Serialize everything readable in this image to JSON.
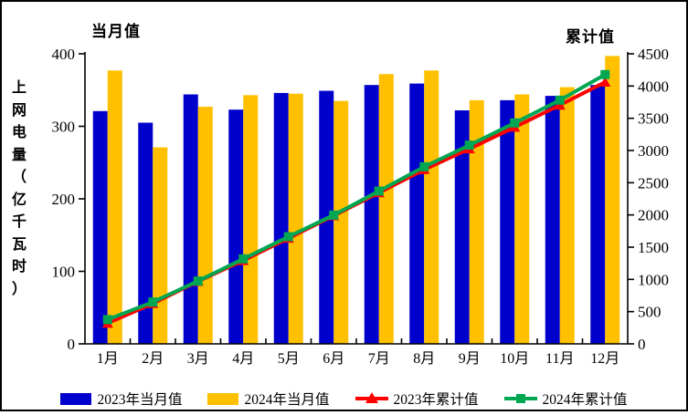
{
  "titles": {
    "left_axis_vertical": "上网电量（亿千瓦时）",
    "primary_axis_top": "当月值",
    "secondary_axis_top": "累计值"
  },
  "colors": {
    "bar_2023": "#0000CC",
    "bar_2024": "#FFC000",
    "line_2023": "#FF0000",
    "line_2024": "#00A651",
    "axis": "#000000",
    "text": "#000000",
    "frame_border": "#000000"
  },
  "chart_data": {
    "type": "bar",
    "subtype": "combo-bar-line-dual-axis",
    "title": "",
    "categories": [
      "1月",
      "2月",
      "3月",
      "4月",
      "5月",
      "6月",
      "7月",
      "8月",
      "9月",
      "10月",
      "11月",
      "12月"
    ],
    "left_axis": {
      "label": "当月值",
      "min": 0,
      "max": 400,
      "step": 100,
      "ticks": [
        0,
        100,
        200,
        300,
        400
      ]
    },
    "right_axis": {
      "label": "累计值",
      "min": 0,
      "max": 4500,
      "step": 500,
      "ticks": [
        0,
        500,
        1000,
        1500,
        2000,
        2500,
        3000,
        3500,
        4000,
        4500
      ]
    },
    "grid": false,
    "legend_position": "bottom",
    "series": [
      {
        "name": "2023年当月值",
        "type": "bar",
        "axis": "left",
        "color": "#0000CC",
        "marker": "rect",
        "values": [
          321,
          305,
          344,
          323,
          346,
          349,
          357,
          359,
          322,
          336,
          342,
          357
        ]
      },
      {
        "name": "2024年当月值",
        "type": "bar",
        "axis": "left",
        "color": "#FFC000",
        "marker": "rect",
        "values": [
          377,
          271,
          327,
          343,
          345,
          335,
          372,
          377,
          336,
          344,
          354,
          397
        ]
      },
      {
        "name": "2023年累计值",
        "type": "line",
        "axis": "right",
        "color": "#FF0000",
        "marker": "triangle",
        "values": [
          321,
          626,
          970,
          1293,
          1639,
          1988,
          2345,
          2704,
          3026,
          3362,
          3704,
          4061
        ]
      },
      {
        "name": "2024年累计值",
        "type": "line",
        "axis": "right",
        "color": "#00A651",
        "marker": "square",
        "values": [
          377,
          648,
          975,
          1318,
          1663,
          1998,
          2370,
          2747,
          3083,
          3427,
          3781,
          4178
        ]
      }
    ]
  }
}
